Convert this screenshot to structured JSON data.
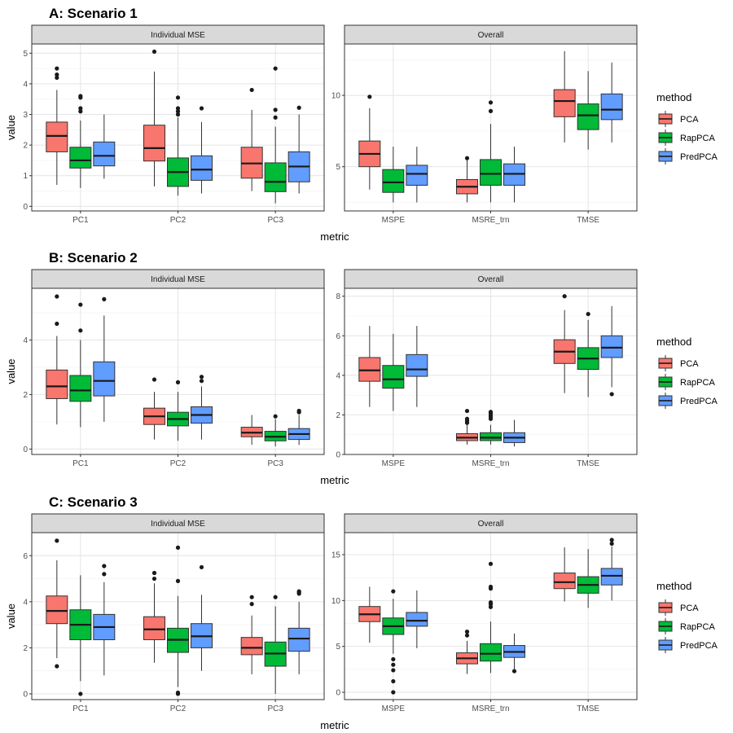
{
  "colors": {
    "PCA": "#F8766D",
    "RapPCA": "#00BA38",
    "PredPCA": "#619CFF"
  },
  "chart_data": [
    {
      "type": "boxplot",
      "title": "A: Scenario 1",
      "xlabel": "metric",
      "ylabel": "value",
      "legend": {
        "title": "method",
        "entries": [
          "PCA",
          "RapPCA",
          "PredPCA"
        ],
        "position": "right"
      },
      "facets": [
        {
          "strip": "Individual MSE",
          "ylim": [
            -0.15,
            5.3
          ],
          "yticks": [
            0,
            1,
            2,
            3,
            4,
            5
          ],
          "categories": [
            "PC1",
            "PC2",
            "PC3"
          ],
          "series": [
            {
              "name": "PCA",
              "boxes": [
                {
                  "low": 0.7,
                  "q1": 1.78,
                  "median": 2.3,
                  "q3": 2.75,
                  "high": 3.8,
                  "outliers": [
                    4.2,
                    4.3,
                    4.5
                  ]
                },
                {
                  "low": 0.65,
                  "q1": 1.48,
                  "median": 1.9,
                  "q3": 2.65,
                  "high": 4.4,
                  "outliers": [
                    5.05
                  ]
                },
                {
                  "low": 0.5,
                  "q1": 0.92,
                  "median": 1.4,
                  "q3": 1.93,
                  "high": 3.15,
                  "outliers": [
                    3.8
                  ]
                }
              ]
            },
            {
              "name": "RapPCA",
              "boxes": [
                {
                  "low": 0.6,
                  "q1": 1.25,
                  "median": 1.5,
                  "q3": 1.93,
                  "high": 2.8,
                  "outliers": [
                    3.1,
                    3.2,
                    3.55,
                    3.6
                  ]
                },
                {
                  "low": 0.35,
                  "q1": 0.65,
                  "median": 1.12,
                  "q3": 1.58,
                  "high": 2.9,
                  "outliers": [
                    3.0,
                    3.1,
                    3.2,
                    3.55
                  ]
                },
                {
                  "low": 0.1,
                  "q1": 0.48,
                  "median": 0.8,
                  "q3": 1.42,
                  "high": 2.6,
                  "outliers": [
                    2.9,
                    3.15,
                    4.5
                  ]
                }
              ]
            },
            {
              "name": "PredPCA",
              "boxes": [
                {
                  "low": 0.9,
                  "q1": 1.32,
                  "median": 1.65,
                  "q3": 2.1,
                  "high": 3.0,
                  "outliers": []
                },
                {
                  "low": 0.42,
                  "q1": 0.85,
                  "median": 1.2,
                  "q3": 1.65,
                  "high": 2.75,
                  "outliers": [
                    3.2
                  ]
                },
                {
                  "low": 0.42,
                  "q1": 0.8,
                  "median": 1.3,
                  "q3": 1.78,
                  "high": 3.0,
                  "outliers": [
                    3.22
                  ]
                }
              ]
            }
          ]
        },
        {
          "strip": "Overall",
          "ylim": [
            1.9,
            13.6
          ],
          "yticks": [
            5,
            10
          ],
          "categories": [
            "MSPE",
            "MSRE_trn",
            "TMSE"
          ],
          "series": [
            {
              "name": "PCA",
              "boxes": [
                {
                  "low": 3.4,
                  "q1": 5.0,
                  "median": 5.9,
                  "q3": 6.8,
                  "high": 9.1,
                  "outliers": [
                    9.9
                  ]
                },
                {
                  "low": 2.5,
                  "q1": 3.1,
                  "median": 3.6,
                  "q3": 4.1,
                  "high": 5.5,
                  "outliers": [
                    5.6
                  ]
                },
                {
                  "low": 6.7,
                  "q1": 8.5,
                  "median": 9.6,
                  "q3": 10.4,
                  "high": 13.1,
                  "outliers": []
                }
              ]
            },
            {
              "name": "RapPCA",
              "boxes": [
                {
                  "low": 2.5,
                  "q1": 3.2,
                  "median": 3.9,
                  "q3": 4.8,
                  "high": 6.4,
                  "outliers": []
                },
                {
                  "low": 2.5,
                  "q1": 3.7,
                  "median": 4.5,
                  "q3": 5.5,
                  "high": 8.0,
                  "outliers": [
                    8.9,
                    9.5
                  ]
                },
                {
                  "low": 6.2,
                  "q1": 7.6,
                  "median": 8.6,
                  "q3": 9.4,
                  "high": 11.7,
                  "outliers": []
                }
              ]
            },
            {
              "name": "PredPCA",
              "boxes": [
                {
                  "low": 2.5,
                  "q1": 3.7,
                  "median": 4.5,
                  "q3": 5.1,
                  "high": 6.4,
                  "outliers": []
                },
                {
                  "low": 2.5,
                  "q1": 3.7,
                  "median": 4.5,
                  "q3": 5.2,
                  "high": 6.4,
                  "outliers": []
                },
                {
                  "low": 6.7,
                  "q1": 8.3,
                  "median": 9.0,
                  "q3": 10.1,
                  "high": 12.3,
                  "outliers": []
                }
              ]
            }
          ]
        }
      ]
    },
    {
      "type": "boxplot",
      "title": "B: Scenario 2",
      "xlabel": "metric",
      "ylabel": "value",
      "legend": {
        "title": "method",
        "entries": [
          "PCA",
          "RapPCA",
          "PredPCA"
        ],
        "position": "right"
      },
      "facets": [
        {
          "strip": "Individual MSE",
          "ylim": [
            -0.2,
            5.9
          ],
          "yticks": [
            0,
            2,
            4
          ],
          "categories": [
            "PC1",
            "PC2",
            "PC3"
          ],
          "series": [
            {
              "name": "PCA",
              "boxes": [
                {
                  "low": 0.9,
                  "q1": 1.85,
                  "median": 2.3,
                  "q3": 2.9,
                  "high": 4.15,
                  "outliers": [
                    4.6,
                    5.6
                  ]
                },
                {
                  "low": 0.35,
                  "q1": 0.9,
                  "median": 1.2,
                  "q3": 1.5,
                  "high": 2.1,
                  "outliers": [
                    2.55
                  ]
                },
                {
                  "low": 0.15,
                  "q1": 0.45,
                  "median": 0.6,
                  "q3": 0.8,
                  "high": 1.25,
                  "outliers": []
                }
              ]
            },
            {
              "name": "RapPCA",
              "boxes": [
                {
                  "low": 0.8,
                  "q1": 1.75,
                  "median": 2.15,
                  "q3": 2.7,
                  "high": 4.0,
                  "outliers": [
                    4.35,
                    5.3
                  ]
                },
                {
                  "low": 0.3,
                  "q1": 0.85,
                  "median": 1.1,
                  "q3": 1.35,
                  "high": 2.1,
                  "outliers": [
                    2.45
                  ]
                },
                {
                  "low": 0.1,
                  "q1": 0.3,
                  "median": 0.45,
                  "q3": 0.65,
                  "high": 1.1,
                  "outliers": [
                    1.2
                  ]
                }
              ]
            },
            {
              "name": "PredPCA",
              "boxes": [
                {
                  "low": 1.0,
                  "q1": 1.95,
                  "median": 2.5,
                  "q3": 3.2,
                  "high": 4.9,
                  "outliers": [
                    5.5
                  ]
                },
                {
                  "low": 0.35,
                  "q1": 0.95,
                  "median": 1.25,
                  "q3": 1.55,
                  "high": 2.3,
                  "outliers": [
                    2.5,
                    2.65
                  ]
                },
                {
                  "low": 0.15,
                  "q1": 0.35,
                  "median": 0.55,
                  "q3": 0.75,
                  "high": 1.25,
                  "outliers": [
                    1.35,
                    1.4
                  ]
                }
              ]
            }
          ]
        },
        {
          "strip": "Overall",
          "ylim": [
            0,
            8.4
          ],
          "yticks": [
            0,
            2,
            4,
            6,
            8
          ],
          "categories": [
            "MSPE",
            "MSRE_trn",
            "TMSE"
          ],
          "series": [
            {
              "name": "PCA",
              "boxes": [
                {
                  "low": 2.4,
                  "q1": 3.7,
                  "median": 4.25,
                  "q3": 4.9,
                  "high": 6.5,
                  "outliers": []
                },
                {
                  "low": 0.5,
                  "q1": 0.7,
                  "median": 0.85,
                  "q3": 1.05,
                  "high": 1.5,
                  "outliers": [
                    1.6,
                    1.7,
                    1.8,
                    2.2
                  ]
                },
                {
                  "low": 3.1,
                  "q1": 4.6,
                  "median": 5.2,
                  "q3": 5.8,
                  "high": 7.3,
                  "outliers": [
                    8.0
                  ]
                }
              ]
            },
            {
              "name": "RapPCA",
              "boxes": [
                {
                  "low": 2.2,
                  "q1": 3.35,
                  "median": 3.8,
                  "q3": 4.5,
                  "high": 6.1,
                  "outliers": []
                },
                {
                  "low": 0.5,
                  "q1": 0.7,
                  "median": 0.85,
                  "q3": 1.1,
                  "high": 1.5,
                  "outliers": [
                    1.8,
                    1.9,
                    2.0,
                    2.1,
                    2.15
                  ]
                },
                {
                  "low": 2.9,
                  "q1": 4.3,
                  "median": 4.85,
                  "q3": 5.4,
                  "high": 6.8,
                  "outliers": [
                    7.1
                  ]
                }
              ]
            },
            {
              "name": "PredPCA",
              "boxes": [
                {
                  "low": 2.4,
                  "q1": 3.95,
                  "median": 4.3,
                  "q3": 5.05,
                  "high": 6.5,
                  "outliers": []
                },
                {
                  "low": 0.4,
                  "q1": 0.6,
                  "median": 0.85,
                  "q3": 1.1,
                  "high": 1.75,
                  "outliers": []
                },
                {
                  "low": 3.4,
                  "q1": 4.9,
                  "median": 5.4,
                  "q3": 6.0,
                  "high": 7.5,
                  "outliers": [
                    3.05
                  ]
                }
              ]
            }
          ]
        }
      ]
    },
    {
      "type": "boxplot",
      "title": "C: Scenario 3",
      "xlabel": "metric",
      "ylabel": "value",
      "legend": {
        "title": "method",
        "entries": [
          "PCA",
          "RapPCA",
          "PredPCA"
        ],
        "position": "right"
      },
      "facets": [
        {
          "strip": "Individual MSE",
          "ylim": [
            -0.25,
            7.0
          ],
          "yticks": [
            0,
            2,
            4,
            6
          ],
          "categories": [
            "PC1",
            "PC2",
            "PC3"
          ],
          "series": [
            {
              "name": "PCA",
              "boxes": [
                {
                  "low": 1.55,
                  "q1": 3.05,
                  "median": 3.6,
                  "q3": 4.25,
                  "high": 5.8,
                  "outliers": [
                    6.65,
                    1.2
                  ]
                },
                {
                  "low": 1.35,
                  "q1": 2.35,
                  "median": 2.8,
                  "q3": 3.35,
                  "high": 4.8,
                  "outliers": [
                    5.0,
                    5.25
                  ]
                },
                {
                  "low": 0.85,
                  "q1": 1.7,
                  "median": 2.0,
                  "q3": 2.45,
                  "high": 3.4,
                  "outliers": [
                    3.9,
                    4.2
                  ]
                }
              ]
            },
            {
              "name": "RapPCA",
              "boxes": [
                {
                  "low": 0.55,
                  "q1": 2.35,
                  "median": 3.0,
                  "q3": 3.65,
                  "high": 5.15,
                  "outliers": [
                    0.0
                  ]
                },
                {
                  "low": 0.3,
                  "q1": 1.8,
                  "median": 2.35,
                  "q3": 2.85,
                  "high": 4.25,
                  "outliers": [
                    0.0,
                    0.05,
                    4.9,
                    6.35
                  ]
                },
                {
                  "low": 0.0,
                  "q1": 1.2,
                  "median": 1.75,
                  "q3": 2.25,
                  "high": 3.8,
                  "outliers": [
                    4.2
                  ]
                }
              ]
            },
            {
              "name": "PredPCA",
              "boxes": [
                {
                  "low": 0.8,
                  "q1": 2.35,
                  "median": 2.9,
                  "q3": 3.45,
                  "high": 4.85,
                  "outliers": [
                    5.2,
                    5.55
                  ]
                },
                {
                  "low": 1.0,
                  "q1": 2.0,
                  "median": 2.5,
                  "q3": 3.05,
                  "high": 4.3,
                  "outliers": [
                    5.5
                  ]
                },
                {
                  "low": 0.85,
                  "q1": 1.85,
                  "median": 2.4,
                  "q3": 2.85,
                  "high": 4.0,
                  "outliers": [
                    4.35,
                    4.4,
                    4.45
                  ]
                }
              ]
            }
          ]
        },
        {
          "strip": "Overall",
          "ylim": [
            -0.8,
            17.4
          ],
          "yticks": [
            0,
            5,
            10,
            15
          ],
          "categories": [
            "MSPE",
            "MSRE_trn",
            "TMSE"
          ],
          "series": [
            {
              "name": "PCA",
              "boxes": [
                {
                  "low": 5.4,
                  "q1": 7.7,
                  "median": 8.5,
                  "q3": 9.35,
                  "high": 11.5,
                  "outliers": []
                },
                {
                  "low": 2.0,
                  "q1": 3.1,
                  "median": 3.7,
                  "q3": 4.3,
                  "high": 5.6,
                  "outliers": [
                    6.2,
                    6.6
                  ]
                },
                {
                  "low": 9.9,
                  "q1": 11.3,
                  "median": 12.0,
                  "q3": 13.0,
                  "high": 15.8,
                  "outliers": []
                }
              ]
            },
            {
              "name": "RapPCA",
              "boxes": [
                {
                  "low": 4.2,
                  "q1": 6.3,
                  "median": 7.2,
                  "q3": 8.1,
                  "high": 10.2,
                  "outliers": [
                    0.0,
                    1.2,
                    2.4,
                    3.0,
                    3.6,
                    11.0
                  ]
                },
                {
                  "low": 2.1,
                  "q1": 3.4,
                  "median": 4.2,
                  "q3": 5.3,
                  "high": 7.7,
                  "outliers": [
                    9.3,
                    9.6,
                    9.8,
                    11.3,
                    11.5,
                    14.0
                  ]
                },
                {
                  "low": 9.2,
                  "q1": 10.8,
                  "median": 11.7,
                  "q3": 12.6,
                  "high": 15.6,
                  "outliers": []
                }
              ]
            },
            {
              "name": "PredPCA",
              "boxes": [
                {
                  "low": 4.8,
                  "q1": 7.2,
                  "median": 7.8,
                  "q3": 8.7,
                  "high": 11.1,
                  "outliers": []
                },
                {
                  "low": 2.2,
                  "q1": 3.8,
                  "median": 4.4,
                  "q3": 5.1,
                  "high": 6.4,
                  "outliers": [
                    2.3
                  ]
                },
                {
                  "low": 10.0,
                  "q1": 11.7,
                  "median": 12.7,
                  "q3": 13.5,
                  "high": 15.9,
                  "outliers": [
                    16.2,
                    16.6
                  ]
                }
              ]
            }
          ]
        }
      ]
    }
  ]
}
